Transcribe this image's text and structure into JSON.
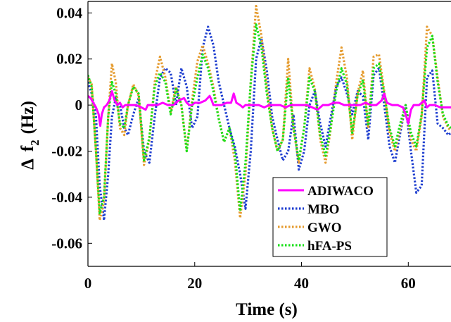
{
  "chart_data": {
    "type": "line",
    "title": "",
    "xlabel": "Time (s)",
    "ylabel_parts": {
      "delta": "Δ",
      "var": "f",
      "sub": "2",
      "unit": "(Hz)"
    },
    "xlim": [
      0,
      68
    ],
    "ylim": [
      -0.07,
      0.045
    ],
    "x_ticks": [
      0,
      20,
      40,
      60
    ],
    "x_tick_labels": [
      "0",
      "20",
      "40",
      "60"
    ],
    "y_ticks": [
      0.04,
      0.02,
      0,
      -0.02,
      -0.04,
      -0.06
    ],
    "y_tick_labels": [
      "0.04",
      "0.02",
      "0",
      "-0.02",
      "-0.04",
      "-0.06"
    ],
    "grid": false,
    "legend_position": "lower-right",
    "series": [
      {
        "name": "ADIWACO",
        "color": "#ff00ff",
        "style": "solid",
        "x": [
          0,
          0.5,
          1.0,
          1.5,
          2.0,
          2.3,
          2.6,
          3.0,
          3.5,
          4.0,
          4.5,
          5.0,
          5.5,
          6.0,
          6.5,
          7.0,
          8.0,
          9.0,
          10.0,
          10.8,
          11.2,
          12.0,
          13.0,
          14.0,
          15.0,
          16.0,
          17.0,
          18.0,
          18.5,
          19.0,
          19.5,
          20.0,
          21.0,
          22.0,
          22.8,
          23.2,
          23.5,
          24.0,
          25.0,
          26.0,
          26.8,
          27.3,
          27.8,
          28.5,
          29.0,
          29.5,
          30.0,
          31.0,
          32.0,
          33.0,
          34.0,
          35.0,
          36.0,
          37.0,
          38.0,
          39.0,
          40.0,
          41.0,
          42.0,
          43.0,
          44.0,
          45.0,
          46.0,
          47.0,
          48.0,
          49.0,
          50.0,
          51.0,
          52.0,
          53.0,
          54.0,
          55.0,
          55.5,
          56.0,
          57.0,
          58.0,
          59.0,
          59.5,
          60.0,
          60.5,
          61.0,
          62.0,
          63.0,
          63.5,
          64.0,
          65.0,
          66.0,
          67.0,
          68.0
        ],
        "y": [
          0.004,
          0.003,
          0.001,
          -0.001,
          -0.004,
          -0.009,
          -0.004,
          -0.001,
          0.0,
          0.002,
          0.006,
          0.002,
          0.0,
          0.001,
          -0.001,
          0.0,
          0.0,
          0.0,
          -0.001,
          -0.002,
          0.0,
          0.0,
          0.0,
          0.001,
          0.0,
          0.0,
          0.002,
          0.003,
          0.001,
          0.0,
          0.0,
          0.001,
          0.001,
          0.002,
          0.004,
          0.002,
          0.0,
          0.0,
          0.0,
          0.001,
          0.001,
          0.005,
          0.001,
          0.0,
          -0.001,
          0.0,
          0.0,
          0.0,
          0.0,
          -0.001,
          0.0,
          0.0,
          0.0,
          -0.001,
          0.0,
          0.0,
          0.0,
          0.0,
          -0.001,
          -0.002,
          0.0,
          0.0,
          0.001,
          0.001,
          0.0,
          0.0,
          0.0,
          0.0,
          0.001,
          0.0,
          0.0,
          0.002,
          0.005,
          0.001,
          0.0,
          0.0,
          -0.001,
          -0.004,
          -0.008,
          -0.002,
          0.0,
          0.0,
          0.002,
          -0.001,
          0.0,
          0.0,
          -0.001,
          -0.001,
          -0.001
        ]
      },
      {
        "name": "MBO",
        "color": "#1f3fd0",
        "style": "dotted",
        "x": [
          0,
          0.7,
          1.5,
          2.2,
          3.0,
          3.8,
          4.5,
          5.2,
          6.0,
          6.8,
          7.5,
          8.5,
          9.5,
          10.5,
          11.5,
          12.5,
          13.5,
          14.5,
          15.5,
          16.5,
          17.5,
          18.5,
          19.5,
          20.5,
          21.5,
          22.5,
          23.5,
          24.5,
          25.5,
          26.5,
          27.5,
          28.5,
          29.5,
          30.5,
          31.5,
          32.5,
          33.5,
          34.5,
          35.5,
          36.5,
          37.5,
          38.5,
          39.5,
          40.5,
          41.5,
          42.5,
          43.5,
          44.5,
          45.5,
          46.5,
          47.5,
          48.5,
          49.5,
          50.5,
          51.5,
          52.5,
          53.5,
          54.5,
          55.5,
          56.5,
          57.5,
          58.5,
          59.5,
          60.5,
          61.5,
          62.5,
          63.5,
          64.5,
          65.5,
          66.5,
          67.5,
          68.0
        ],
        "y": [
          0.01,
          0.005,
          -0.005,
          -0.035,
          -0.05,
          -0.03,
          -0.005,
          0.003,
          0.0,
          -0.01,
          -0.013,
          -0.004,
          0.003,
          -0.02,
          -0.025,
          -0.005,
          0.012,
          0.016,
          0.014,
          0.0,
          0.016,
          0.008,
          -0.01,
          -0.005,
          0.025,
          0.034,
          0.026,
          0.01,
          0.0,
          -0.01,
          -0.018,
          -0.03,
          -0.045,
          -0.02,
          0.02,
          0.029,
          0.015,
          -0.005,
          -0.015,
          -0.024,
          -0.02,
          -0.004,
          -0.028,
          -0.02,
          0.0,
          0.006,
          -0.008,
          -0.018,
          -0.005,
          0.008,
          0.012,
          0.005,
          -0.004,
          0.006,
          0.004,
          -0.015,
          0.013,
          0.016,
          0.0,
          -0.018,
          -0.025,
          -0.012,
          0.0,
          -0.02,
          -0.038,
          -0.035,
          0.012,
          0.015,
          -0.008,
          -0.01,
          -0.013,
          -0.012
        ]
      },
      {
        "name": "GWO",
        "color": "#e59b2e",
        "style": "dotted",
        "x": [
          0,
          0.7,
          1.5,
          2.2,
          3.0,
          3.8,
          4.5,
          5.2,
          6.0,
          6.8,
          7.5,
          8.5,
          9.5,
          10.5,
          11.5,
          12.5,
          13.5,
          14.5,
          15.5,
          16.5,
          17.5,
          18.5,
          19.5,
          20.5,
          21.5,
          22.5,
          23.5,
          24.5,
          25.5,
          26.5,
          27.5,
          28.5,
          29.5,
          30.5,
          31.5,
          32.5,
          33.5,
          34.5,
          35.5,
          36.5,
          37.5,
          38.5,
          39.5,
          40.5,
          41.5,
          42.5,
          43.5,
          44.5,
          45.5,
          46.5,
          47.5,
          48.5,
          49.5,
          50.5,
          51.5,
          52.5,
          53.5,
          54.5,
          55.5,
          56.5,
          57.5,
          58.5,
          59.5,
          60.5,
          61.5,
          62.5,
          63.5,
          64.5,
          65.5,
          66.5,
          67.5,
          68.0
        ],
        "y": [
          0.012,
          0.009,
          -0.02,
          -0.05,
          -0.042,
          -0.005,
          0.018,
          0.01,
          -0.01,
          -0.013,
          0.0,
          0.009,
          0.004,
          -0.026,
          -0.015,
          0.01,
          0.021,
          0.012,
          -0.003,
          0.008,
          0.0,
          -0.02,
          0.002,
          0.019,
          0.026,
          0.018,
          0.008,
          -0.006,
          -0.016,
          -0.01,
          -0.024,
          -0.049,
          -0.03,
          0.01,
          0.043,
          0.03,
          0.008,
          -0.01,
          -0.02,
          -0.015,
          0.02,
          -0.01,
          -0.025,
          -0.01,
          0.016,
          0.007,
          -0.015,
          -0.025,
          -0.01,
          0.01,
          0.025,
          0.012,
          -0.015,
          0.005,
          0.015,
          -0.01,
          0.021,
          0.022,
          0.006,
          -0.012,
          -0.02,
          -0.01,
          0.0,
          -0.015,
          -0.02,
          -0.005,
          0.034,
          0.03,
          0.012,
          -0.005,
          -0.01,
          -0.011
        ]
      },
      {
        "name": "hFA-PS",
        "color": "#18e018",
        "style": "dotted",
        "x": [
          0,
          0.7,
          1.5,
          2.2,
          3.0,
          3.8,
          4.5,
          5.2,
          6.0,
          6.8,
          7.5,
          8.5,
          9.5,
          10.5,
          11.5,
          12.5,
          13.5,
          14.5,
          15.5,
          16.5,
          17.5,
          18.5,
          19.5,
          20.5,
          21.5,
          22.5,
          23.5,
          24.5,
          25.5,
          26.5,
          27.5,
          28.5,
          29.5,
          30.5,
          31.5,
          32.5,
          33.5,
          34.5,
          35.5,
          36.5,
          37.5,
          38.5,
          39.5,
          40.5,
          41.5,
          42.5,
          43.5,
          44.5,
          45.5,
          46.5,
          47.5,
          48.5,
          49.5,
          50.5,
          51.5,
          52.5,
          53.5,
          54.5,
          55.5,
          56.5,
          57.5,
          58.5,
          59.5,
          60.5,
          61.5,
          62.5,
          63.5,
          64.5,
          65.5,
          66.5,
          67.5,
          68.0
        ],
        "y": [
          0.013,
          0.008,
          -0.02,
          -0.047,
          -0.04,
          -0.005,
          0.01,
          0.005,
          -0.008,
          -0.01,
          0.0,
          0.008,
          0.005,
          -0.024,
          -0.014,
          0.008,
          0.014,
          0.01,
          -0.004,
          0.007,
          0.0,
          -0.02,
          0.0,
          0.012,
          0.022,
          0.016,
          0.006,
          -0.006,
          -0.016,
          -0.01,
          -0.02,
          -0.046,
          -0.025,
          0.01,
          0.035,
          0.025,
          0.005,
          -0.01,
          -0.02,
          -0.015,
          0.012,
          -0.01,
          -0.024,
          -0.01,
          0.012,
          0.006,
          -0.013,
          -0.022,
          -0.009,
          0.006,
          0.016,
          0.009,
          -0.012,
          0.004,
          0.011,
          -0.009,
          0.016,
          0.018,
          0.005,
          -0.01,
          -0.018,
          -0.008,
          0.0,
          -0.012,
          -0.018,
          -0.004,
          0.025,
          0.03,
          0.01,
          -0.004,
          -0.009,
          -0.01
        ]
      }
    ]
  }
}
